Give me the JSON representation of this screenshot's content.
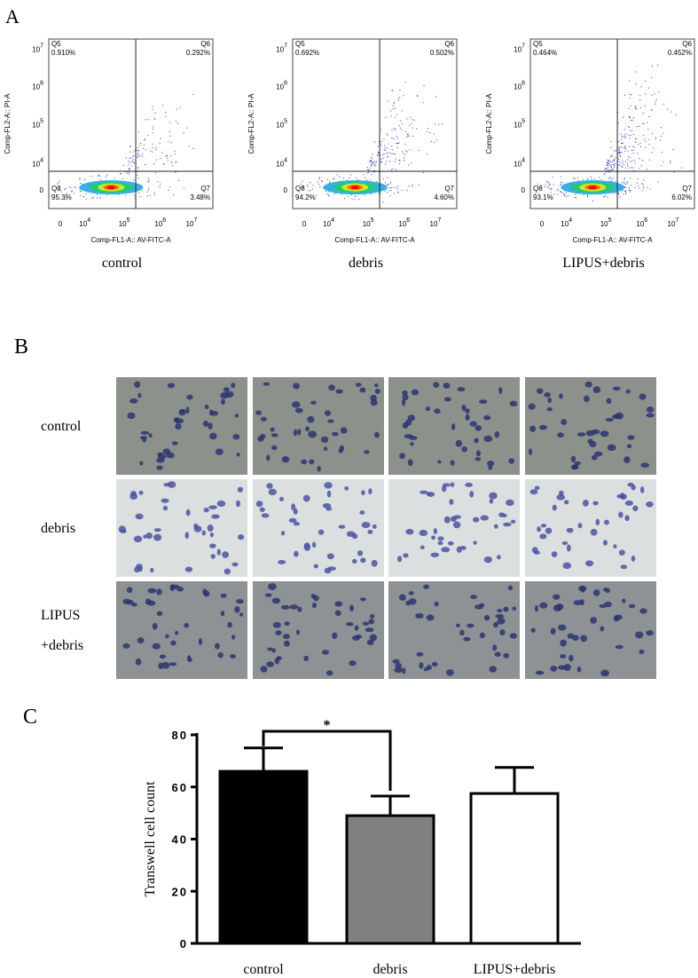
{
  "panel_a": {
    "label": "A",
    "x_axis_label": "Comp-FL1-A:: AV-FITC-A",
    "y_axis_label": "Comp-FL2-A:: PI-A",
    "x_ticks": [
      "0",
      {
        "base": "10",
        "exp": "4"
      },
      {
        "base": "10",
        "exp": "5"
      },
      {
        "base": "10",
        "exp": "6"
      },
      {
        "base": "10",
        "exp": "7"
      }
    ],
    "y_ticks": [
      "0",
      {
        "base": "10",
        "exp": "4"
      },
      {
        "base": "10",
        "exp": "5"
      },
      {
        "base": "10",
        "exp": "6"
      },
      {
        "base": "10",
        "exp": "7"
      }
    ],
    "plots": [
      {
        "name": "control",
        "q5": [
          "Q5",
          "0.910%"
        ],
        "q6": [
          "Q6",
          "0.292%"
        ],
        "q8": [
          "Q8",
          "95.3%"
        ],
        "q7": [
          "Q7",
          "3.48%"
        ]
      },
      {
        "name": "debris",
        "q5": [
          "Q5",
          "0.692%"
        ],
        "q6": [
          "Q6",
          "0.502%"
        ],
        "q8": [
          "Q8",
          "94.2%"
        ],
        "q7": [
          "Q7",
          "4.60%"
        ]
      },
      {
        "name": "LIPUS+debris",
        "q5": [
          "Q5",
          "0.464%"
        ],
        "q6": [
          "Q6",
          "0.452%"
        ],
        "q8": [
          "Q8",
          "93.1%"
        ],
        "q7": [
          "Q7",
          "6.02%"
        ]
      }
    ]
  },
  "panel_b": {
    "label": "B",
    "rows": [
      [
        "control"
      ],
      [
        "debris"
      ],
      [
        "LIPUS",
        "+debris"
      ]
    ]
  },
  "chart_data": {
    "type": "bar",
    "label": "C",
    "y_axis_label": "Transwell cell count",
    "categories": [
      "control",
      "debris",
      "LIPUS+debris"
    ],
    "values": [
      66,
      49,
      57.5
    ],
    "errors": [
      9,
      7.5,
      10
    ],
    "colors": [
      "#000000",
      "#808080",
      "#ffffff"
    ],
    "ylim": [
      0,
      80
    ],
    "yticks": [
      0,
      20,
      40,
      60,
      80
    ],
    "annotation": "*"
  }
}
